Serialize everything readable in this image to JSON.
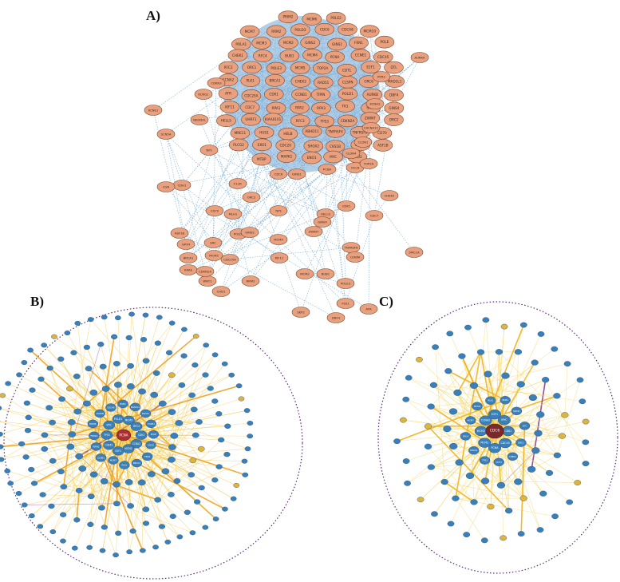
{
  "panels": {
    "a": {
      "label": "A)",
      "colors": {
        "node_fill": "#e8a07e",
        "node_stroke": "#7a4a30",
        "edge": "#7fb0d6",
        "blob": "#74a7d3"
      },
      "nodes": [
        "PRIM2",
        "MCM6",
        "POLE2",
        "MCM7",
        "RRM2",
        "POLD3",
        "CDC6",
        "CDCA8",
        "MCM10",
        "POLA1",
        "MCM3",
        "MCM2",
        "GINS2",
        "GINS1",
        "FEN1",
        "POLE",
        "CHEK1",
        "RFC4",
        "BUB1",
        "MCM4",
        "PCNA",
        "CCNE1",
        "CDC45",
        "RFC2",
        "ORC1",
        "POLE3",
        "MCM5",
        "TOP2A",
        "CDT1",
        "E2F1",
        "DTL",
        "CCNA2",
        "PLK1",
        "BRCA1",
        "CHEK2",
        "RAD51",
        "CLSPN",
        "ORC6",
        "MAD2L1",
        "ATR",
        "CDC25A",
        "CDK1",
        "CCNB1",
        "TIPIN",
        "POLD1",
        "AURKB",
        "DBF4",
        "KIF11",
        "CDC7",
        "RPA1",
        "RPA2",
        "RPA3",
        "TK1",
        "SKP2",
        "GINS4",
        "HELLS",
        "UHRF1",
        "KIAA0101",
        "RFC3",
        "TP53",
        "CDKN2A",
        "ZWINT",
        "ORC2",
        "MRE11",
        "HUS1",
        "HELB",
        "ABHD11",
        "TNFRSF4",
        "TNFRSF8",
        "CD70",
        "PLCG2",
        "EXO1",
        "CDC20",
        "SHOX2",
        "CKS1B",
        "CENPA",
        "ASF1B",
        "MTBP",
        "MAPK1",
        "ENO1",
        "MYC",
        "AGO2",
        "SMC1A",
        "GPX4",
        "TPR",
        "TFRC",
        "PTK2",
        "JAK2",
        "CDKN1B",
        "KRAS",
        "SRC",
        "CDH1",
        "HSPA5",
        "NOTCH1",
        "CDK6",
        "TERT",
        "WNT1",
        "MLH1",
        "CCND1",
        "EGF",
        "IL6",
        "CLDN1",
        "CLDN4",
        "CHD1",
        "TJP1",
        "OCLN"
      ],
      "tail_nodes": [
        "AURKA",
        "CDKN3",
        "KCNQ1",
        "KCNE1",
        "SCN5A",
        "NEDD4L",
        "RYR2",
        "KCNH2",
        "CACNA1C",
        "CLDN1",
        "CLDN4",
        "OCLN",
        "TJP1",
        "CDH1",
        "CGN",
        "F11R"
      ]
    },
    "b": {
      "label": "B)",
      "colors": {
        "hub": "#a83030",
        "node": "#3b7fb8",
        "node_stroke": "#1f4d78",
        "yellow_node": "#e0b43a",
        "edge": "#f0c43a",
        "edge_strong": "#f0a020",
        "edge_purple": "#8a3a9a",
        "border": "#5a2a7a"
      },
      "hub_label": "PCNA",
      "core_labels": [
        "CDK1",
        "CCNA2",
        "MCM2",
        "E2F1",
        "CHEK1",
        "TP53",
        "MYC",
        "POLD1",
        "MCM3",
        "RFC4",
        "CDC6",
        "FEN1",
        "BRCA1",
        "PLK1",
        "MCM7",
        "CCNB1",
        "RRM2",
        "TOP2A",
        "MCM4",
        "AURKB",
        "CDC45",
        "BUB1",
        "MAD2L1",
        "RAD51",
        "CCNE1",
        "POLE",
        "ORC1",
        "GINS2",
        "TK1",
        "RPA1",
        "CDT1",
        "DTL"
      ]
    },
    "c": {
      "label": "C)",
      "colors": {
        "hub": "#7a2a2a",
        "node": "#3b7fb8",
        "node_stroke": "#1f4d78",
        "yellow_node": "#e0b43a",
        "edge": "#f2d050",
        "edge_strong": "#f0b020",
        "edge_purple": "#8a3a9a",
        "border": "#5a2a7a"
      },
      "hub_label": "CDC6",
      "core_labels": [
        "CDK1",
        "CDC45",
        "PCNA",
        "MCM2",
        "MCM3",
        "CCNA2",
        "E2F1",
        "MYC",
        "ORC1",
        "CHEK1",
        "CDT1",
        "TP53",
        "POLD1",
        "RFC4",
        "MCM7",
        "MCM4",
        "PLK1",
        "BUB1",
        "RRM2",
        "DTL",
        "FEN1",
        "CCNE1",
        "GINS2",
        "MCM10"
      ]
    }
  }
}
